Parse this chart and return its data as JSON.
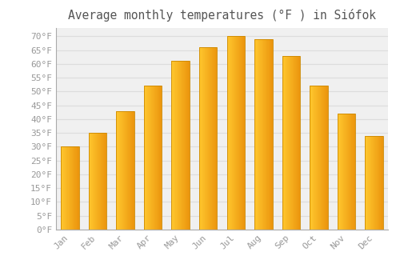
{
  "title": "Average monthly temperatures (°F ) in Siófok",
  "months": [
    "Jan",
    "Feb",
    "Mar",
    "Apr",
    "May",
    "Jun",
    "Jul",
    "Aug",
    "Sep",
    "Oct",
    "Nov",
    "Dec"
  ],
  "values": [
    30,
    35,
    43,
    52,
    61,
    66,
    70,
    69,
    63,
    52,
    42,
    34
  ],
  "bar_color_main": "#FFA500",
  "bar_color_light": "#FFD050",
  "bar_color_dark": "#E8900A",
  "bar_edge_color": "#CC8800",
  "background_color": "#FFFFFF",
  "plot_bg_color": "#F0F0F0",
  "grid_color": "#DDDDDD",
  "text_color": "#999999",
  "title_color": "#555555",
  "ylim": [
    0,
    73
  ],
  "yticks": [
    0,
    5,
    10,
    15,
    20,
    25,
    30,
    35,
    40,
    45,
    50,
    55,
    60,
    65,
    70
  ],
  "title_fontsize": 10.5,
  "tick_fontsize": 8,
  "bar_width": 0.65
}
